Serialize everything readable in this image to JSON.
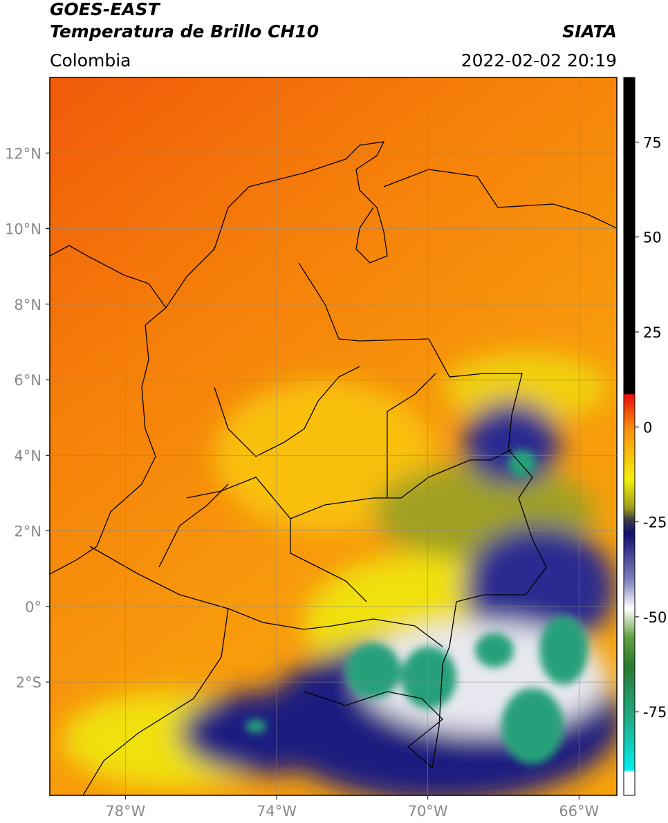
{
  "header": {
    "title": "GOES-EAST",
    "subtitle": "Temperatura de Brillo CH10",
    "region": "Colombia",
    "source": "SIATA",
    "datetime": "2022-02-02 20:19"
  },
  "map": {
    "lon_range": [
      -80,
      -65
    ],
    "lat_range": [
      -5,
      14
    ],
    "lat_ticks": [
      {
        "value": 12,
        "label": "12°N"
      },
      {
        "value": 10,
        "label": "10°N"
      },
      {
        "value": 8,
        "label": "8°N"
      },
      {
        "value": 6,
        "label": "6°N"
      },
      {
        "value": 4,
        "label": "4°N"
      },
      {
        "value": 2,
        "label": "2°N"
      },
      {
        "value": 0,
        "label": "0°"
      },
      {
        "value": -2,
        "label": "2°S"
      }
    ],
    "lon_ticks": [
      {
        "value": -78,
        "label": "78°W"
      },
      {
        "value": -74,
        "label": "74°W"
      },
      {
        "value": -70,
        "label": "70°W"
      },
      {
        "value": -66,
        "label": "66°W"
      }
    ],
    "grid": true
  },
  "colorbar": {
    "range": [
      -97,
      92
    ],
    "ticks": [
      75,
      50,
      25,
      0,
      -25,
      -50,
      -75
    ]
  }
}
